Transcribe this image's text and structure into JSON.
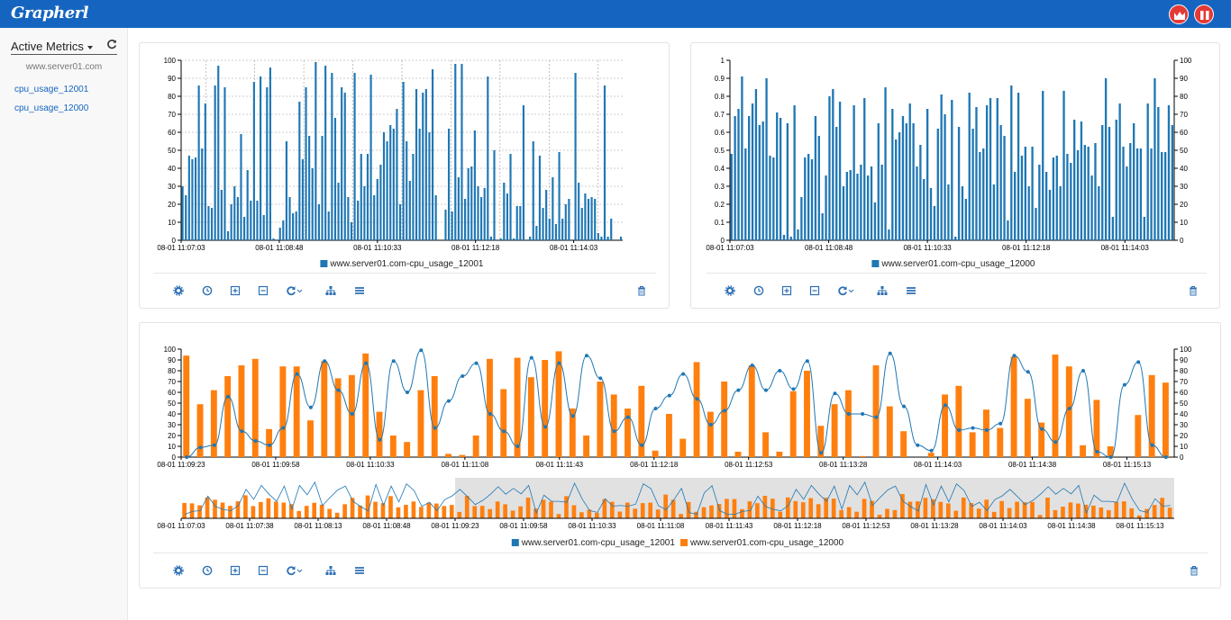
{
  "app": {
    "title": "Grapherl"
  },
  "header": {
    "chart_button_icon": "area-chart-icon",
    "pause_button_icon": "pause-icon"
  },
  "sidebar": {
    "title": "Active Metrics",
    "refresh_icon": "refresh-icon",
    "server": "www.server01.com",
    "metrics": [
      {
        "label": "cpu_usage_12001"
      },
      {
        "label": "cpu_usage_12000"
      }
    ]
  },
  "toolbar": {
    "icons": [
      "gear-icon",
      "clock-icon",
      "zoom-in-icon",
      "zoom-out-icon",
      "refresh-dropdown-icon",
      "sitemap-icon",
      "menu-icon",
      "trash-icon"
    ]
  },
  "colors": {
    "blue": "#1f77b4",
    "orange": "#ff7f0e",
    "accent": "#1565c0",
    "danger": "#e53935"
  },
  "chart_data": [
    {
      "type": "bar",
      "ylim": [
        0,
        100
      ],
      "x_ticks": [
        "08-01 11:07:03",
        "08-01 11:08:48",
        "08-01 11:10:33",
        "08-01 11:12:18",
        "08-01 11:14:03"
      ],
      "y_ticks": [
        "0",
        "10",
        "20",
        "30",
        "40",
        "50",
        "60",
        "70",
        "80",
        "90",
        "100"
      ],
      "series": [
        {
          "name": "www.server01.com-cpu_usage_12001",
          "values": [
            30,
            25,
            47,
            45,
            46,
            86,
            51,
            76,
            19,
            18,
            86,
            97,
            28,
            85,
            5,
            20,
            30,
            24,
            59,
            13,
            39,
            22,
            88,
            22,
            91,
            14,
            85,
            96,
            1,
            0,
            7,
            11,
            55,
            24,
            15,
            16,
            77,
            45,
            85,
            58,
            40,
            99,
            20,
            58,
            97,
            16,
            93,
            68,
            32,
            85,
            82,
            24,
            10,
            93,
            22,
            48,
            30,
            48,
            92,
            25,
            34,
            42,
            60,
            55,
            64,
            62,
            73,
            20,
            88,
            55,
            33,
            48,
            84,
            62,
            82,
            84,
            60,
            95,
            25,
            0,
            0,
            17,
            62,
            16,
            98,
            35,
            98,
            23,
            40,
            41,
            61,
            30,
            24,
            29,
            91,
            2,
            50,
            0,
            1,
            32,
            26,
            48,
            1,
            19,
            19,
            75,
            0,
            2,
            55,
            8,
            47,
            18,
            28,
            12,
            35,
            9,
            49,
            12,
            20,
            23,
            0,
            93,
            32,
            18,
            26,
            23,
            24,
            23,
            4,
            2,
            86,
            2,
            12,
            0,
            0,
            2
          ]
        }
      ]
    },
    {
      "type": "bar",
      "ylim": [
        0,
        1
      ],
      "y2lim": [
        0,
        100
      ],
      "x_ticks": [
        "08-01 11:07:03",
        "08-01 11:08:48",
        "08-01 11:10:33",
        "08-01 11:12:18",
        "08-01 11:14:03"
      ],
      "y_ticks": [
        "0",
        "0.1",
        "0.2",
        "0.3",
        "0.4",
        "0.5",
        "0.6",
        "0.7",
        "0.8",
        "0.9",
        "1"
      ],
      "y2_ticks": [
        "0",
        "10",
        "20",
        "30",
        "40",
        "50",
        "60",
        "70",
        "80",
        "90",
        "100"
      ],
      "series": [
        {
          "name": "www.server01.com-cpu_usage_12000",
          "values": [
            0.48,
            0.69,
            0.73,
            0.91,
            0.51,
            0.69,
            0.76,
            0.84,
            0.64,
            0.66,
            0.9,
            0.47,
            0.46,
            0.71,
            0.68,
            0.03,
            0.65,
            0.02,
            0.75,
            0.06,
            0.24,
            0.46,
            0.48,
            0.45,
            0.69,
            0.58,
            0.15,
            0.36,
            0.8,
            0.84,
            0.63,
            0.77,
            0.3,
            0.38,
            0.39,
            0.75,
            0.37,
            0.42,
            0.79,
            0.36,
            0.41,
            0.21,
            0.65,
            0.42,
            0.85,
            0.06,
            0.73,
            0.56,
            0.6,
            0.69,
            0.65,
            0.76,
            0.65,
            0.41,
            0.53,
            0.34,
            0.73,
            0.29,
            0.19,
            0.62,
            0.81,
            0.7,
            0.31,
            0.78,
            0.02,
            0.63,
            0.3,
            0.23,
            0.82,
            0.62,
            0.74,
            0.49,
            0.51,
            0.75,
            0.79,
            0.31,
            0.79,
            0.64,
            0.58,
            0.11,
            0.86,
            0.38,
            0.82,
            0.47,
            0.52,
            0.3,
            0.52,
            0.18,
            0.42,
            0.83,
            0.38,
            0.28,
            0.46,
            0.47,
            0.3,
            0.83,
            0.48,
            0.43,
            0.67,
            0.5,
            0.66,
            0.53,
            0.52,
            0.36,
            0.54,
            0.3,
            0.64,
            0.9,
            0.63,
            0.13,
            0.67,
            0.76,
            0.52,
            0.41,
            0.54,
            0.65,
            0.51,
            0.51,
            0.13,
            0.76,
            0.51,
            0.9,
            0.74,
            0.49,
            0.49,
            0.75,
            0.64
          ]
        }
      ]
    },
    {
      "type": "bar-line",
      "ylim": [
        0,
        100
      ],
      "x_ticks": [
        "08-01 11:09:23",
        "08-01 11:09:58",
        "08-01 11:10:33",
        "08-01 11:11:08",
        "08-01 11:11:43",
        "08-01 11:12:18",
        "08-01 11:12:53",
        "08-01 11:13:28",
        "08-01 11:14:03",
        "08-01 11:14:38",
        "08-01 11:15:13"
      ],
      "y_ticks": [
        "0",
        "10",
        "20",
        "30",
        "40",
        "50",
        "60",
        "70",
        "80",
        "90",
        "100"
      ],
      "series": [
        {
          "name": "www.server01.com-cpu_usage_12001",
          "type": "line",
          "values": [
            0,
            9,
            11,
            56,
            24,
            15,
            11,
            27,
            77,
            46,
            89,
            62,
            40,
            87,
            16,
            89,
            60,
            99,
            27,
            52,
            75,
            87,
            40,
            24,
            10,
            92,
            28,
            87,
            38,
            94,
            73,
            24,
            37,
            11,
            45,
            57,
            77,
            54,
            30,
            43,
            62,
            85,
            62,
            80,
            63,
            89,
            4,
            59,
            40,
            40,
            37,
            96,
            47,
            11,
            6,
            48,
            25,
            27,
            25,
            31,
            94,
            79,
            26,
            14,
            45,
            80,
            5,
            0,
            67,
            88,
            11,
            0
          ]
        },
        {
          "name": "www.server01.com-cpu_usage_12000",
          "type": "bar",
          "values": [
            94,
            49,
            62,
            75,
            85,
            91,
            26,
            84,
            84,
            34,
            89,
            73,
            76,
            96,
            42,
            20,
            14,
            62,
            75,
            3,
            2,
            20,
            91,
            63,
            92,
            74,
            90,
            98,
            45,
            20,
            70,
            58,
            45,
            66,
            6,
            40,
            17,
            88,
            42,
            70,
            5,
            85,
            23,
            5,
            61,
            80,
            29,
            49,
            62,
            1,
            85,
            47,
            24,
            0,
            4,
            58,
            66,
            23,
            44,
            27,
            93,
            54,
            32,
            95,
            84,
            11,
            53,
            10,
            0,
            39,
            76,
            69
          ]
        }
      ],
      "navigator": {
        "x_ticks": [
          "08-01 11:07:03",
          "08-01 11:07:38",
          "08-01 11:08:13",
          "08-01 11:08:48",
          "08-01 11:09:23",
          "08-01 11:09:58",
          "08-01 11:10:33",
          "08-01 11:11:08",
          "08-01 11:11:43",
          "08-01 11:12:18",
          "08-01 11:12:53",
          "08-01 11:13:28",
          "08-01 11:14:03",
          "08-01 11:14:38",
          "08-01 11:15:13"
        ],
        "selected_from": "08-01 11:09:23",
        "selected_to": "08-01 11:15:13"
      }
    }
  ]
}
